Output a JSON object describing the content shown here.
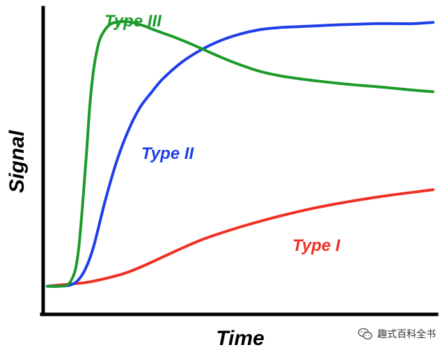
{
  "chart_data": {
    "type": "line",
    "title": "",
    "xlabel": "Time",
    "ylabel": "Signal",
    "xlim": [
      0,
      100
    ],
    "ylim": [
      0,
      100
    ],
    "grid": false,
    "legend": "none",
    "series": [
      {
        "name": "Type I",
        "color": "#ee3124",
        "x": [
          0,
          5,
          10,
          15,
          20,
          25,
          30,
          35,
          40,
          45,
          50,
          55,
          60,
          65,
          70,
          75,
          80,
          85,
          90,
          95,
          100
        ],
        "y": [
          9,
          9.6,
          10.2,
          11.5,
          13.2,
          15.7,
          18.6,
          21.5,
          24.2,
          26.4,
          28.4,
          30.2,
          31.9,
          33.4,
          34.8,
          36.0,
          37.1,
          38.1,
          39.0,
          39.8,
          40.6
        ]
      },
      {
        "name": "Type II",
        "color": "#1f3fe8",
        "x": [
          0,
          3,
          6,
          8,
          10,
          12,
          15,
          18,
          21,
          24,
          27,
          30,
          35,
          40,
          45,
          50,
          55,
          60,
          65,
          70,
          75,
          80,
          85,
          90,
          95,
          100
        ],
        "y": [
          9,
          9.0,
          9.4,
          11,
          15,
          22,
          37,
          50,
          60,
          67.5,
          72.5,
          77,
          82.5,
          86.5,
          89.5,
          91.6,
          93.0,
          93.7,
          94.0,
          94.3,
          94.6,
          94.8,
          95.0,
          95.0,
          95.0,
          95.4
        ]
      },
      {
        "name": "Type III",
        "color": "#1d9a2a",
        "x": [
          0,
          3,
          6,
          8,
          10,
          11,
          12,
          13,
          14,
          16,
          18,
          20,
          22,
          25,
          28,
          32,
          36,
          40,
          45,
          50,
          55,
          60,
          65,
          70,
          75,
          80,
          85,
          90,
          95,
          100
        ],
        "y": [
          9,
          9.0,
          10.5,
          20,
          50,
          68,
          80,
          87,
          91,
          94.5,
          95.5,
          95.7,
          95.4,
          94.3,
          92.8,
          91.0,
          89.0,
          86.8,
          84.0,
          81.5,
          79.4,
          78.0,
          77.0,
          76.2,
          75.5,
          74.9,
          74.4,
          73.8,
          73.2,
          72.7
        ]
      }
    ]
  },
  "watermark": {
    "text": "趣式百科全书"
  }
}
